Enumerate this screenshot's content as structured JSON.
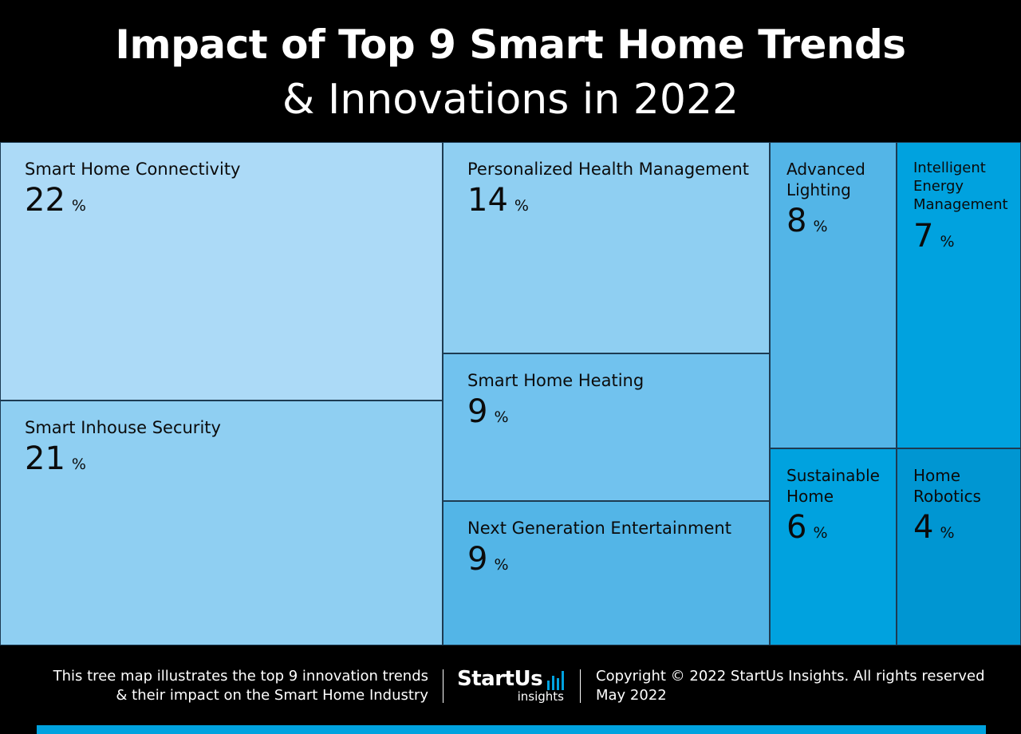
{
  "header": {
    "title_line1": "Impact of Top 9 Smart Home Trends",
    "title_line2": "& Innovations in 2022"
  },
  "chart_data": {
    "type": "treemap",
    "title": "Impact of Top 9 Smart Home Trends & Innovations in 2022",
    "unit": "%",
    "items": [
      {
        "label": "Smart Home Connectivity",
        "value": 22,
        "color": "#acdaf7"
      },
      {
        "label": "Smart Inhouse Security",
        "value": 21,
        "color": "#8fcff2"
      },
      {
        "label": "Personalized Health Management",
        "value": 14,
        "color": "#8fcff2"
      },
      {
        "label": "Smart Home Heating",
        "value": 9,
        "color": "#71c2ee"
      },
      {
        "label": "Next Generation Entertainment",
        "value": 9,
        "color": "#53b5e7"
      },
      {
        "label": "Advanced Lighting",
        "value": 8,
        "color": "#53b5e7"
      },
      {
        "label": "Intelligent Energy Management",
        "value": 7,
        "color": "#00a2df"
      },
      {
        "label": "Sustainable Home",
        "value": 6,
        "color": "#00a2df"
      },
      {
        "label": "Home Robotics",
        "value": 4,
        "color": "#0096d2"
      }
    ]
  },
  "footer": {
    "description_line1": "This tree map illustrates the top 9 innovation trends",
    "description_line2": "& their impact on the Smart Home Industry",
    "logo_main": "StartUs",
    "logo_sub": "insights",
    "copyright_line1": "Copyright © 2022 StartUs Insights. All rights reserved",
    "copyright_line2": "May 2022",
    "accent_color": "#00a2df"
  }
}
